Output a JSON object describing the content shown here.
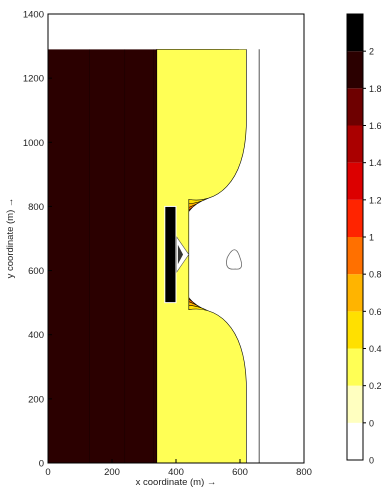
{
  "chart_data": {
    "type": "heatmap",
    "xlabel": "x coordinate (m) →",
    "ylabel": "y coordinate (m) →",
    "xlim": [
      0,
      800
    ],
    "ylim": [
      0,
      1400
    ],
    "x_ticks": [
      0,
      200,
      400,
      600,
      800
    ],
    "y_ticks": [
      0,
      200,
      400,
      600,
      800,
      1000,
      1200,
      1400
    ],
    "grid": false,
    "domain": {
      "x": [
        0,
        660
      ],
      "y": [
        0,
        1290
      ]
    },
    "breakwater": {
      "x": [
        365,
        400
      ],
      "y": [
        500,
        800
      ]
    },
    "colorbar": {
      "placement": "right",
      "ticks": [
        "0",
        "0.2",
        "0.4",
        "0.6",
        "0.8",
        "1",
        "1.2",
        "1.4",
        "1.6",
        "1.8",
        "2"
      ],
      "levels": [
        0,
        0.2,
        0.4,
        0.6,
        0.8,
        1.0,
        1.2,
        1.4,
        1.6,
        1.8,
        2.0
      ],
      "colors": [
        "#ffffff",
        "#ffffc0",
        "#ffff55",
        "#ffe000",
        "#ffb400",
        "#ff7000",
        "#ff2400",
        "#dc0000",
        "#aa0000",
        "#6e0000",
        "#2b0000",
        "#000000"
      ]
    },
    "contour_fronts_x": [
      420,
      462,
      488,
      510,
      530,
      550,
      572,
      596,
      620
    ],
    "contour_band_colors": [
      "#2b0000",
      "#6e0000",
      "#aa0000",
      "#dc0000",
      "#ff2400",
      "#ff7000",
      "#ffb400",
      "#ffe000",
      "#ffff55",
      "#ffffc0"
    ],
    "far_field_level_x": 350
  }
}
